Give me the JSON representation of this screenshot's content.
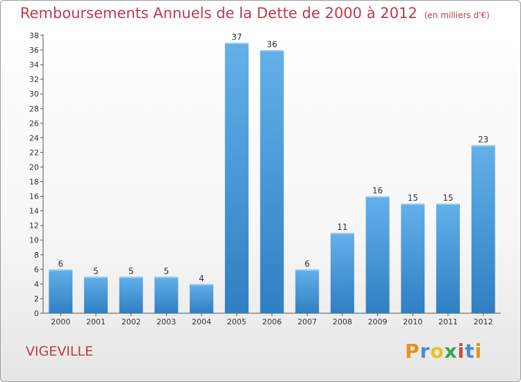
{
  "header": {
    "title": "Remboursements Annuels de la Dette de 2000 à 2012",
    "unit_note": "(en milliers d'€)"
  },
  "footer": {
    "city": "VIGEVILLE",
    "logo_text": "Proxiti"
  },
  "colors": {
    "bar_top": "#63b0ea",
    "bar_bottom": "#2f7fc2",
    "title": "#c0394a"
  },
  "chart_data": {
    "type": "bar",
    "title": "Remboursements Annuels de la Dette de 2000 à 2012",
    "xlabel": "",
    "ylabel": "",
    "categories": [
      "2000",
      "2001",
      "2002",
      "2003",
      "2004",
      "2005",
      "2006",
      "2007",
      "2008",
      "2009",
      "2010",
      "2011",
      "2012"
    ],
    "values": [
      6,
      5,
      5,
      5,
      4,
      37,
      36,
      6,
      11,
      16,
      15,
      15,
      23
    ],
    "ylim": [
      0,
      38
    ],
    "yticks": [
      0,
      2,
      4,
      6,
      8,
      10,
      12,
      14,
      16,
      18,
      20,
      22,
      24,
      26,
      28,
      30,
      32,
      34,
      36,
      38
    ],
    "grid": false,
    "legend": "none"
  }
}
